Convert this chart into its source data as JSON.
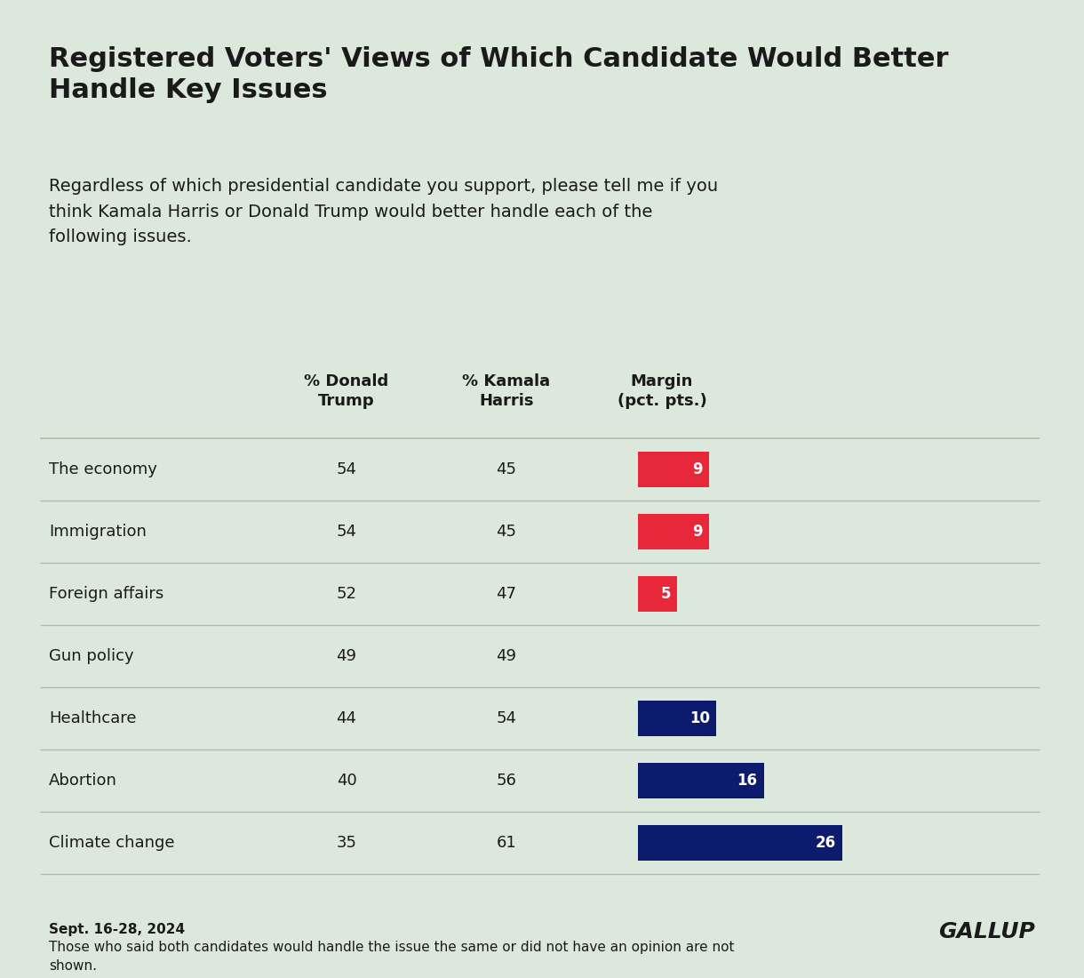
{
  "title": "Registered Voters' Views of Which Candidate Would Better\nHandle Key Issues",
  "subtitle": "Regardless of which presidential candidate you support, please tell me if you\nthink Kamala Harris or Donald Trump would better handle each of the\nfollowing issues.",
  "col_headers": [
    "% Donald\nTrump",
    "% Kamala\nHarris",
    "Margin\n(pct. pts.)"
  ],
  "issues": [
    "The economy",
    "Immigration",
    "Foreign affairs",
    "Gun policy",
    "Healthcare",
    "Abortion",
    "Climate change"
  ],
  "trump_pct": [
    54,
    54,
    52,
    49,
    44,
    40,
    35
  ],
  "harris_pct": [
    45,
    45,
    47,
    49,
    54,
    56,
    61
  ],
  "margins": [
    9,
    9,
    5,
    0,
    10,
    16,
    26
  ],
  "margin_dirs": [
    "trump",
    "trump",
    "trump",
    "none",
    "harris",
    "harris",
    "harris"
  ],
  "trump_color": "#e8273a",
  "harris_color": "#0d1b6e",
  "background_color": "#dde8dc",
  "separator_color": "#aabfaa",
  "footnote_date": "Sept. 16-28, 2024",
  "footnote_text": "Those who said both candidates would handle the issue the same or did not have an opinion are not\nshown.",
  "gallup_text": "GALLUP",
  "text_color": "#1a1a1a"
}
